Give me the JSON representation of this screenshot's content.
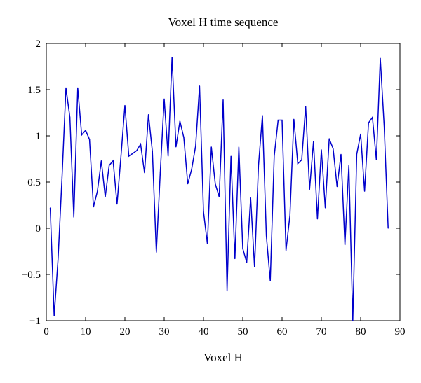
{
  "chart_data": {
    "type": "line",
    "title": "Voxel H time sequence",
    "xlabel": "Voxel H",
    "ylabel": "",
    "xlim": [
      0,
      90
    ],
    "ylim": [
      -1,
      2
    ],
    "x_ticks": [
      "0",
      "10",
      "20",
      "30",
      "40",
      "50",
      "60",
      "70",
      "80",
      "90"
    ],
    "y_ticks": [
      "−1",
      "−0.5",
      "0",
      "0.5",
      "1",
      "1.5",
      "2"
    ],
    "grid": false,
    "series_color": "#0000cc",
    "series": [
      {
        "x": [
          1,
          2,
          3,
          4,
          5,
          6,
          7,
          8,
          9,
          10,
          11,
          12,
          13,
          14,
          15,
          16,
          17,
          18,
          19,
          20,
          21,
          22,
          23,
          24,
          25,
          26,
          27,
          28,
          29,
          30,
          31,
          32,
          33,
          34,
          35,
          36,
          37,
          38,
          39,
          40,
          41,
          42,
          43,
          44,
          45,
          46,
          47,
          48,
          49,
          50,
          51,
          52,
          53,
          54,
          55,
          56,
          57,
          58,
          59,
          60,
          61,
          62,
          63,
          64,
          65,
          66,
          67,
          68,
          69,
          70,
          71,
          72,
          73,
          74,
          75,
          76,
          77,
          78,
          79,
          80,
          81,
          82,
          83,
          84,
          85,
          86,
          87
        ],
        "values": [
          0.22,
          -0.95,
          -0.33,
          0.55,
          1.52,
          1.2,
          0.12,
          1.52,
          1.01,
          1.06,
          0.96,
          0.23,
          0.4,
          0.73,
          0.34,
          0.68,
          0.73,
          0.26,
          0.78,
          1.33,
          0.78,
          0.81,
          0.84,
          0.91,
          0.6,
          1.23,
          0.83,
          -0.26,
          0.6,
          1.4,
          0.78,
          1.85,
          0.88,
          1.16,
          0.98,
          0.48,
          0.64,
          0.89,
          1.54,
          0.18,
          -0.17,
          0.88,
          0.48,
          0.34,
          1.39,
          -0.68,
          0.78,
          -0.33,
          0.88,
          -0.22,
          -0.37,
          0.33,
          -0.42,
          0.68,
          1.22,
          -0.08,
          -0.57,
          0.78,
          1.17,
          1.17,
          -0.24,
          0.14,
          1.18,
          0.7,
          0.74,
          1.32,
          0.42,
          0.94,
          0.1,
          0.85,
          0.22,
          0.97,
          0.86,
          0.45,
          0.8,
          -0.18,
          0.68,
          -1.0,
          0.8,
          1.02,
          0.4,
          1.14,
          1.2,
          0.74,
          1.84,
          1.1,
          0.0
        ]
      }
    ]
  }
}
